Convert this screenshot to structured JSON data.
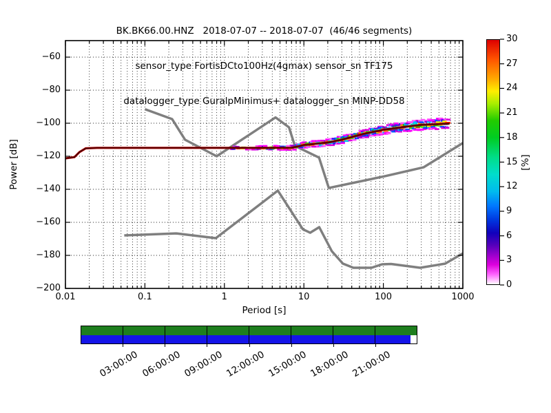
{
  "title": {
    "line1": "BK.BK66.00.HNZ   2018-07-07 -- 2018-07-07  (46/46 segments)",
    "line2": "sensor_type FortisDCto100Hz(4gmax) sensor_sn TF175",
    "line3": "datalogger_type GuralpMinimus+ datalogger_sn MINP-DD58"
  },
  "chart_data": {
    "type": "heatmap",
    "title": "BK.BK66.00.HNZ 2018-07-07 -- 2018-07-07 (46/46 segments)",
    "xlabel": "Period [s]",
    "ylabel": "Power [dB]",
    "x_scale": "log",
    "xlim": [
      0.01,
      1000
    ],
    "ylim": [
      -200,
      -50
    ],
    "grid": true,
    "x_tick_labels": [
      "0.01",
      "0.1",
      "1",
      "10",
      "100",
      "1000"
    ],
    "y_tick_values": [
      -60,
      -80,
      -100,
      -120,
      -140,
      -160,
      -180,
      -200
    ],
    "y_tick_labels": [
      "−60",
      "−80",
      "−100",
      "−120",
      "−140",
      "−160",
      "−180",
      "−200"
    ],
    "colorbar": {
      "label": "[%]",
      "min": 0,
      "max": 30,
      "tick_values": [
        30,
        27,
        24,
        21,
        18,
        15,
        12,
        9,
        6,
        3,
        0
      ],
      "gradient_stops": [
        [
          "0%",
          "#dd0000"
        ],
        [
          "8%",
          "#ff5500"
        ],
        [
          "16%",
          "#ffaa00"
        ],
        [
          "21%",
          "#ffee00"
        ],
        [
          "26%",
          "#aaee00"
        ],
        [
          "33%",
          "#22cc00"
        ],
        [
          "40%",
          "#00cc22"
        ],
        [
          "48%",
          "#00dd88"
        ],
        [
          "55%",
          "#00ddcc"
        ],
        [
          "62%",
          "#00bbee"
        ],
        [
          "68%",
          "#0077ff"
        ],
        [
          "74%",
          "#0033dd"
        ],
        [
          "79%",
          "#1100bb"
        ],
        [
          "84%",
          "#5500bb"
        ],
        [
          "88%",
          "#9900cc"
        ],
        [
          "92%",
          "#dd00dd"
        ],
        [
          "96%",
          "#ff66ff"
        ],
        [
          "100%",
          "#ffffff"
        ]
      ]
    },
    "noise_models": {
      "color": "#7f7f7f",
      "nhnm": [
        [
          0.1,
          -91.5
        ],
        [
          0.22,
          -97.5
        ],
        [
          0.32,
          -110
        ],
        [
          0.8,
          -120
        ],
        [
          4.4,
          -96.5
        ],
        [
          6.5,
          -102.5
        ],
        [
          7.7,
          -113.7
        ],
        [
          15.5,
          -120.8
        ],
        [
          20.6,
          -139.2
        ],
        [
          106,
          -132
        ],
        [
          320,
          -126.7
        ],
        [
          1000,
          -112
        ]
      ],
      "nlnm": [
        [
          0.055,
          -167.9
        ],
        [
          0.25,
          -166.7
        ],
        [
          0.78,
          -169.6
        ],
        [
          3.1,
          -147.5
        ],
        [
          4.7,
          -140.8
        ],
        [
          9.7,
          -164.2
        ],
        [
          12,
          -166.3
        ],
        [
          15.6,
          -162.9
        ],
        [
          22.5,
          -177.5
        ],
        [
          31,
          -185
        ],
        [
          42,
          -187.5
        ],
        [
          71,
          -187.5
        ],
        [
          96,
          -185.4
        ],
        [
          125,
          -185.2
        ],
        [
          290,
          -187.5
        ],
        [
          600,
          -185
        ],
        [
          1000,
          -178.8
        ]
      ]
    },
    "psd_mode_line": {
      "color": "#aa0000",
      "points": [
        [
          0.01,
          -121.3
        ],
        [
          0.013,
          -120.5
        ],
        [
          0.015,
          -117.5
        ],
        [
          0.018,
          -115.2
        ],
        [
          0.025,
          -114.9
        ],
        [
          7,
          -114.9
        ],
        [
          10,
          -113.2
        ],
        [
          20,
          -111.7
        ],
        [
          30,
          -110
        ],
        [
          58,
          -106.3
        ],
        [
          100,
          -104
        ],
        [
          180,
          -102.3
        ],
        [
          300,
          -101
        ],
        [
          680,
          -100.2
        ]
      ]
    },
    "psd_band": {
      "period_start": 1.25,
      "period_end": 680,
      "spread_db": {
        "start": 1.0,
        "end": 3.4
      },
      "palette_outer": [
        "#ff00ff",
        "#dd00dd",
        "#ff55ff"
      ],
      "palette_mid": [
        "#2222ee",
        "#0055ff",
        "#00bbff",
        "#8800cc"
      ],
      "palette_inner": [
        "#00cc00",
        "#00ddcc",
        "#ffee00",
        "#ff8800",
        "#33dd00",
        "#0099ff",
        "#ff2200"
      ]
    },
    "availability_bar": {
      "green": "#1e7e1e",
      "blue": "#1414e8",
      "blue_fraction": 0.981,
      "gap_fraction": 0.019,
      "tick_hours": [
        3,
        6,
        9,
        12,
        15,
        18,
        21
      ],
      "tick_labels": [
        "03:00:00",
        "06:00:00",
        "09:00:00",
        "12:00:00",
        "15:00:00",
        "18:00:00",
        "21:00:00"
      ]
    }
  }
}
